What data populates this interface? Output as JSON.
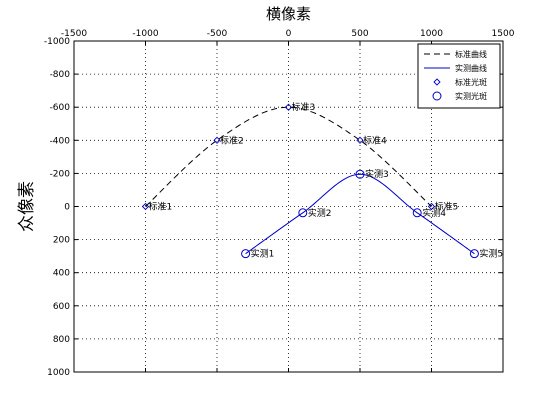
{
  "chart_data": {
    "type": "line",
    "title": "横像素",
    "xlabel": "",
    "ylabel": "众像素",
    "xlim": [
      -1500,
      1500
    ],
    "ylim": [
      -1000,
      1000
    ],
    "y_reversed": true,
    "x_axis_location": "top",
    "grid": true,
    "legend_position": "top-right",
    "xticks": [
      -1500,
      -1000,
      -500,
      0,
      500,
      1000,
      1500
    ],
    "yticks": [
      -1000,
      -800,
      -600,
      -400,
      -200,
      0,
      200,
      400,
      600,
      800,
      1000
    ],
    "colors": {
      "standard": "#000000",
      "measured": "#0000cc"
    },
    "series": [
      {
        "name": "标准曲线",
        "kind": "curve",
        "style": "dashed",
        "x": [
          -1000,
          -500,
          0,
          500,
          1000
        ],
        "y": [
          0,
          -400,
          -600,
          -400,
          0
        ]
      },
      {
        "name": "实测曲线",
        "kind": "curve",
        "style": "solid",
        "x": [
          -300,
          100,
          500,
          900,
          1300
        ],
        "y": [
          285,
          38,
          -195,
          38,
          285
        ]
      },
      {
        "name": "标准光斑",
        "kind": "points",
        "marker": "diamond",
        "x": [
          -1000,
          -500,
          0,
          500,
          1000
        ],
        "y": [
          0,
          -400,
          -600,
          -400,
          0
        ],
        "labels": [
          "标准1",
          "标准2",
          "标准3",
          "标准4",
          "标准5"
        ]
      },
      {
        "name": "实测光斑",
        "kind": "points",
        "marker": "circle",
        "x": [
          -300,
          100,
          500,
          900,
          1300
        ],
        "y": [
          285,
          38,
          -195,
          38,
          285
        ],
        "labels": [
          "实测1",
          "实测2",
          "实测3",
          "实测4",
          "实测5"
        ]
      }
    ]
  }
}
